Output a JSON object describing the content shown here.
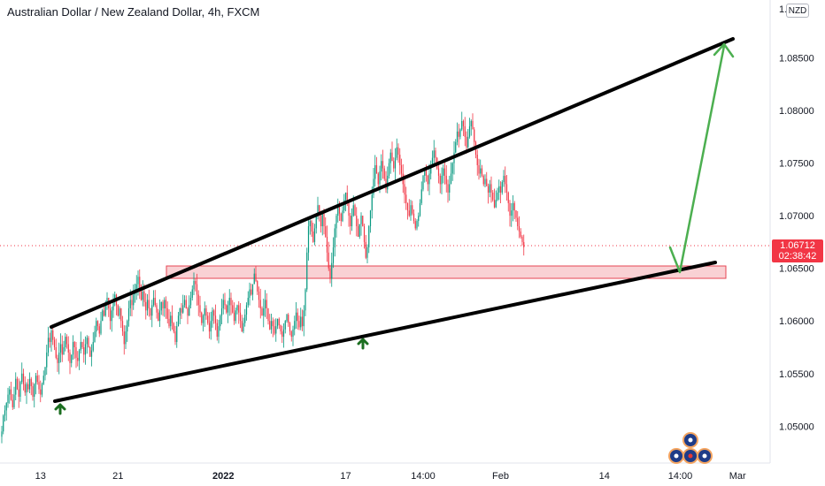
{
  "title": "Australian Dollar / New Zealand Dollar, 4h, FXCM",
  "currency": "NZD",
  "price_label": {
    "price": "1.06712",
    "countdown": "02:38:42"
  },
  "colors": {
    "up": "#089981",
    "down": "#f23645",
    "zone_fill": "#f8c9cc",
    "zone_stroke": "#e64553",
    "arrow": "#43a047",
    "pivot": "#1b6e20",
    "line": "#000000"
  },
  "chart_data": {
    "type": "candlestick",
    "symbol": "AUDNZD",
    "timeframe": "4h",
    "source": "FXCM",
    "ylim": [
      1.0465,
      1.0905
    ],
    "y_ticks": [
      "1.05000",
      "1.05500",
      "1.06000",
      "1.06500",
      "1.07000",
      "1.07500",
      "1.08000",
      "1.08500"
    ],
    "y_ticks_partial": [
      "1."
    ],
    "x_ticks": [
      {
        "label": "13",
        "bold": false
      },
      {
        "label": "21",
        "bold": false
      },
      {
        "label": "2022",
        "bold": true
      },
      {
        "label": "17",
        "bold": false
      },
      {
        "label": "14:00",
        "bold": false
      },
      {
        "label": "Feb",
        "bold": false
      },
      {
        "label": "14",
        "bold": false
      },
      {
        "label": "14:00",
        "bold": false
      },
      {
        "label": "Mar",
        "bold": false
      }
    ],
    "x_tick_index": [
      25,
      75,
      143,
      222,
      272,
      322,
      389,
      438,
      475
    ],
    "closes": [
      1.0495,
      1.051,
      1.0515,
      1.0522,
      1.053,
      1.0535,
      1.0525,
      1.0518,
      1.053,
      1.0545,
      1.0535,
      1.0528,
      1.0542,
      1.055,
      1.054,
      1.0532,
      1.054,
      1.0535,
      1.0545,
      1.0538,
      1.0528,
      1.054,
      1.0548,
      1.0542,
      1.0535,
      1.053,
      1.054,
      1.0548,
      1.0556,
      1.057,
      1.0584,
      1.058,
      1.0591,
      1.0582,
      1.0575,
      1.0565,
      1.056,
      1.057,
      1.0578,
      1.0568,
      1.0575,
      1.0585,
      1.0578,
      1.057,
      1.056,
      1.0568,
      1.058,
      1.0575,
      1.0565,
      1.0562,
      1.0572,
      1.058,
      1.0575,
      1.0568,
      1.0578,
      1.0584,
      1.0575,
      1.0566,
      1.0572,
      1.058,
      1.059,
      1.06,
      1.0595,
      1.0588,
      1.06,
      1.061,
      1.0605,
      1.0615,
      1.0622,
      1.0612,
      1.06,
      1.061,
      1.0618,
      1.0625,
      1.0615,
      1.0605,
      1.0612,
      1.06,
      1.059,
      1.0578,
      1.059,
      1.06,
      1.0612,
      1.062,
      1.0615,
      1.0625,
      1.063,
      1.0635,
      1.0642,
      1.063,
      1.062,
      1.0628,
      1.0618,
      1.061,
      1.062,
      1.0612,
      1.0605,
      1.0615,
      1.0622,
      1.0615,
      1.0608,
      1.06,
      1.061,
      1.0618,
      1.0612,
      1.062,
      1.0612,
      1.0602,
      1.0595,
      1.0605,
      1.0598,
      1.059,
      1.058,
      1.0595,
      1.0605,
      1.0612,
      1.0608,
      1.0615,
      1.062,
      1.0612,
      1.0605,
      1.0615,
      1.0622,
      1.063,
      1.0638,
      1.0635,
      1.0625,
      1.0615,
      1.0608,
      1.0598,
      1.0605,
      1.0612,
      1.0605,
      1.0598,
      1.059,
      1.06,
      1.061,
      1.0605,
      1.0598,
      1.0585,
      1.0595,
      1.0605,
      1.0612,
      1.062,
      1.0615,
      1.0608,
      1.0615,
      1.0622,
      1.0615,
      1.0608,
      1.06,
      1.061,
      1.0615,
      1.0608,
      1.06,
      1.059,
      1.0598,
      1.0606,
      1.0615,
      1.0622,
      1.063,
      1.0625,
      1.0635,
      1.0645,
      1.0638,
      1.0628,
      1.062,
      1.0612,
      1.0605,
      1.0612,
      1.062,
      1.0612,
      1.06,
      1.0592,
      1.06,
      1.0595,
      1.0588,
      1.0595,
      1.0602,
      1.0596,
      1.059,
      1.0585,
      1.0592,
      1.06,
      1.0606,
      1.0598,
      1.059,
      1.0585,
      1.0592,
      1.06,
      1.0608,
      1.06,
      1.0594,
      1.0604,
      1.0595,
      1.061,
      1.063,
      1.0665,
      1.069,
      1.0695,
      1.0685,
      1.0675,
      1.0688,
      1.07,
      1.071,
      1.07,
      1.069,
      1.0702,
      1.069,
      1.068,
      1.0665,
      1.065,
      1.064,
      1.0655,
      1.067,
      1.0688,
      1.07,
      1.071,
      1.0702,
      1.0695,
      1.0705,
      1.0715,
      1.0722,
      1.0712,
      1.07,
      1.069,
      1.07,
      1.071,
      1.07,
      1.069,
      1.068,
      1.0692,
      1.07,
      1.069,
      1.0675,
      1.066,
      1.067,
      1.069,
      1.0705,
      1.072,
      1.0735,
      1.0748,
      1.074,
      1.073,
      1.0742,
      1.0752,
      1.0745,
      1.0735,
      1.0725,
      1.0738,
      1.075,
      1.076,
      1.0752,
      1.0745,
      1.0755,
      1.0765,
      1.0758,
      1.0748,
      1.074,
      1.073,
      1.072,
      1.0712,
      1.0705,
      1.07,
      1.071,
      1.0702,
      1.0695,
      1.0688,
      1.0695,
      1.07,
      1.0712,
      1.0725,
      1.0738,
      1.0745,
      1.0738,
      1.073,
      1.074,
      1.0748,
      1.0755,
      1.0762,
      1.0755,
      1.0745,
      1.0738,
      1.073,
      1.0738,
      1.0745,
      1.0738,
      1.073,
      1.0722,
      1.073,
      1.074,
      1.075,
      1.076,
      1.077,
      1.078,
      1.0775,
      1.0782,
      1.079,
      1.0785,
      1.0775,
      1.0765,
      1.0775,
      1.0785,
      1.079,
      1.0782,
      1.077,
      1.0758,
      1.0748,
      1.074,
      1.0745,
      1.0738,
      1.073,
      1.0735,
      1.0728,
      1.0722,
      1.073,
      1.0722,
      1.0715,
      1.0708,
      1.0715,
      1.0722,
      1.0728,
      1.0722,
      1.0732,
      1.0738,
      1.073,
      1.0722,
      1.0712,
      1.07,
      1.0705,
      1.0712,
      1.0705,
      1.0698,
      1.069,
      1.0685,
      1.068,
      1.0675,
      1.067
    ]
  }
}
